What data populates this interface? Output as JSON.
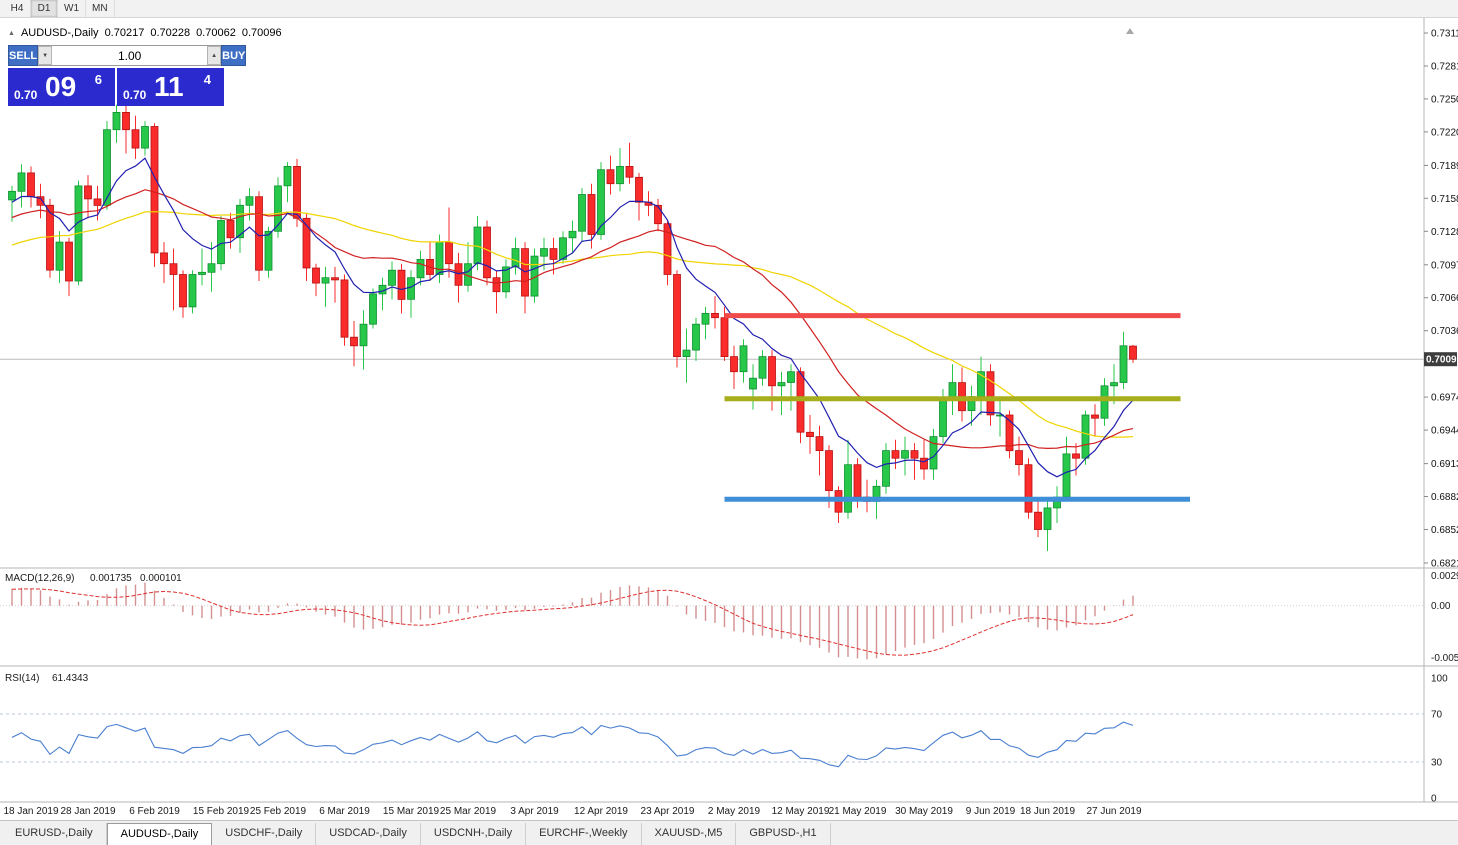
{
  "toolbar": {
    "timeframes": [
      {
        "label": "H4",
        "active": false
      },
      {
        "label": "D1",
        "active": true
      },
      {
        "label": "W1",
        "active": false
      },
      {
        "label": "MN",
        "active": false
      }
    ]
  },
  "icons": {
    "collapse": "▲",
    "volume_up": "▲",
    "volume_down": "▼"
  },
  "info_line": {
    "symbol": "AUDUSD-,Daily",
    "open": "0.70217",
    "high": "0.70228",
    "low": "0.70062",
    "close": "0.70096"
  },
  "one_click": {
    "sell_label": "SELL",
    "buy_label": "BUY",
    "volume": "1.00",
    "sell_price": {
      "small": "0.70",
      "big": "09",
      "sup": "6"
    },
    "buy_price": {
      "small": "0.70",
      "big": "11",
      "sup": "4"
    }
  },
  "chart_data": {
    "type": "candlestick",
    "symbol": "AUDUSD",
    "timeframe": "Daily",
    "bull_color": "#27c74a",
    "bull_border": "#0f8f2f",
    "bear_color": "#f92b2b",
    "bear_border": "#b80f0f",
    "current_price": "0.70096",
    "candles": [
      [
        0.7157,
        0.717,
        0.7137,
        0.7165
      ],
      [
        0.7165,
        0.719,
        0.715,
        0.7182
      ],
      [
        0.7182,
        0.7188,
        0.715,
        0.716
      ],
      [
        0.716,
        0.7172,
        0.714,
        0.7152
      ],
      [
        0.7152,
        0.7158,
        0.7085,
        0.7092
      ],
      [
        0.7092,
        0.7128,
        0.708,
        0.7118
      ],
      [
        0.7118,
        0.7122,
        0.7068,
        0.7082
      ],
      [
        0.7082,
        0.7175,
        0.7078,
        0.717
      ],
      [
        0.717,
        0.718,
        0.714,
        0.7158
      ],
      [
        0.7158,
        0.717,
        0.7138,
        0.7152
      ],
      [
        0.7152,
        0.723,
        0.7148,
        0.7222
      ],
      [
        0.7222,
        0.7245,
        0.721,
        0.7238
      ],
      [
        0.7238,
        0.7248,
        0.72,
        0.7222
      ],
      [
        0.7222,
        0.7235,
        0.7195,
        0.7205
      ],
      [
        0.7205,
        0.723,
        0.7198,
        0.7225
      ],
      [
        0.7225,
        0.7228,
        0.7095,
        0.7108
      ],
      [
        0.7108,
        0.7118,
        0.708,
        0.7098
      ],
      [
        0.7098,
        0.7112,
        0.7055,
        0.7088
      ],
      [
        0.7088,
        0.7092,
        0.7048,
        0.7058
      ],
      [
        0.7058,
        0.7092,
        0.7052,
        0.7088
      ],
      [
        0.7088,
        0.7112,
        0.7078,
        0.709
      ],
      [
        0.709,
        0.7118,
        0.7072,
        0.7098
      ],
      [
        0.7098,
        0.7142,
        0.7092,
        0.7138
      ],
      [
        0.7138,
        0.7145,
        0.7112,
        0.7122
      ],
      [
        0.7122,
        0.7158,
        0.7108,
        0.7152
      ],
      [
        0.7152,
        0.7168,
        0.7138,
        0.716
      ],
      [
        0.716,
        0.7165,
        0.7082,
        0.7092
      ],
      [
        0.7092,
        0.7132,
        0.7085,
        0.7128
      ],
      [
        0.7128,
        0.7178,
        0.7122,
        0.717
      ],
      [
        0.717,
        0.7192,
        0.7155,
        0.7188
      ],
      [
        0.7188,
        0.7195,
        0.7132,
        0.714
      ],
      [
        0.714,
        0.7145,
        0.7082,
        0.7094
      ],
      [
        0.7094,
        0.7098,
        0.7068,
        0.708
      ],
      [
        0.708,
        0.7095,
        0.7058,
        0.7085
      ],
      [
        0.7085,
        0.7095,
        0.7062,
        0.7083
      ],
      [
        0.7083,
        0.7088,
        0.7022,
        0.703
      ],
      [
        0.703,
        0.7045,
        0.7003,
        0.7022
      ],
      [
        0.7022,
        0.7055,
        0.7,
        0.7042
      ],
      [
        0.7042,
        0.7075,
        0.7038,
        0.707
      ],
      [
        0.707,
        0.7085,
        0.7055,
        0.7078
      ],
      [
        0.7078,
        0.71,
        0.7065,
        0.7092
      ],
      [
        0.7092,
        0.7098,
        0.7052,
        0.7065
      ],
      [
        0.7065,
        0.7092,
        0.7048,
        0.7085
      ],
      [
        0.7085,
        0.711,
        0.7078,
        0.7102
      ],
      [
        0.7102,
        0.7118,
        0.7082,
        0.7088
      ],
      [
        0.7088,
        0.7125,
        0.708,
        0.7118
      ],
      [
        0.7118,
        0.715,
        0.7085,
        0.7098
      ],
      [
        0.7098,
        0.7108,
        0.7062,
        0.7078
      ],
      [
        0.7078,
        0.7118,
        0.7072,
        0.7098
      ],
      [
        0.7098,
        0.7142,
        0.7092,
        0.7132
      ],
      [
        0.7132,
        0.7138,
        0.7078,
        0.7085
      ],
      [
        0.7085,
        0.7092,
        0.7052,
        0.7072
      ],
      [
        0.7072,
        0.7102,
        0.7066,
        0.7095
      ],
      [
        0.7095,
        0.7122,
        0.7088,
        0.7112
      ],
      [
        0.7112,
        0.7118,
        0.7052,
        0.7068
      ],
      [
        0.7068,
        0.7112,
        0.7062,
        0.7105
      ],
      [
        0.7105,
        0.7122,
        0.7092,
        0.7112
      ],
      [
        0.7112,
        0.7122,
        0.7088,
        0.7102
      ],
      [
        0.7102,
        0.7128,
        0.7098,
        0.7122
      ],
      [
        0.7122,
        0.7138,
        0.7108,
        0.7128
      ],
      [
        0.7128,
        0.7168,
        0.7118,
        0.7162
      ],
      [
        0.7162,
        0.7172,
        0.7112,
        0.7125
      ],
      [
        0.7125,
        0.7192,
        0.712,
        0.7185
      ],
      [
        0.7185,
        0.7198,
        0.7162,
        0.7172
      ],
      [
        0.7172,
        0.7205,
        0.7165,
        0.7188
      ],
      [
        0.7188,
        0.721,
        0.7172,
        0.7178
      ],
      [
        0.7178,
        0.7182,
        0.7138,
        0.7155
      ],
      [
        0.7155,
        0.7165,
        0.7142,
        0.7152
      ],
      [
        0.7152,
        0.7158,
        0.7128,
        0.7135
      ],
      [
        0.7135,
        0.7138,
        0.7078,
        0.7088
      ],
      [
        0.7088,
        0.7092,
        0.7002,
        0.7012
      ],
      [
        0.7012,
        0.7038,
        0.6988,
        0.7018
      ],
      [
        0.7018,
        0.7048,
        0.7008,
        0.7042
      ],
      [
        0.7042,
        0.7058,
        0.7028,
        0.7052
      ],
      [
        0.7052,
        0.7068,
        0.7038,
        0.7048
      ],
      [
        0.7048,
        0.7058,
        0.7008,
        0.7012
      ],
      [
        0.7012,
        0.7022,
        0.6982,
        0.6998
      ],
      [
        0.6998,
        0.7028,
        0.6988,
        0.7022
      ],
      [
        0.6982,
        0.7005,
        0.6963,
        0.6992
      ],
      [
        0.6992,
        0.7018,
        0.6985,
        0.7012
      ],
      [
        0.7012,
        0.7018,
        0.6962,
        0.6985
      ],
      [
        0.6985,
        0.6998,
        0.6958,
        0.6988
      ],
      [
        0.6988,
        0.7005,
        0.6962,
        0.6998
      ],
      [
        0.6998,
        0.7002,
        0.6932,
        0.6942
      ],
      [
        0.6942,
        0.6958,
        0.6922,
        0.6938
      ],
      [
        0.6938,
        0.6948,
        0.6902,
        0.6925
      ],
      [
        0.6925,
        0.693,
        0.6872,
        0.6888
      ],
      [
        0.6888,
        0.6892,
        0.6858,
        0.6868
      ],
      [
        0.6868,
        0.6935,
        0.6862,
        0.6912
      ],
      [
        0.6912,
        0.6918,
        0.6872,
        0.6882
      ],
      [
        0.6882,
        0.6898,
        0.6868,
        0.6878
      ],
      [
        0.6878,
        0.6898,
        0.6862,
        0.6892
      ],
      [
        0.6892,
        0.6932,
        0.6885,
        0.6925
      ],
      [
        0.6925,
        0.6935,
        0.6908,
        0.6918
      ],
      [
        0.6918,
        0.6938,
        0.6902,
        0.6925
      ],
      [
        0.6925,
        0.6932,
        0.6898,
        0.6918
      ],
      [
        0.6918,
        0.6935,
        0.6898,
        0.6908
      ],
      [
        0.6908,
        0.6945,
        0.6898,
        0.6938
      ],
      [
        0.6938,
        0.6982,
        0.6932,
        0.6972
      ],
      [
        0.6972,
        0.7005,
        0.6958,
        0.6988
      ],
      [
        0.6988,
        0.7002,
        0.6952,
        0.6962
      ],
      [
        0.6962,
        0.6985,
        0.6948,
        0.6975
      ],
      [
        0.6975,
        0.7012,
        0.6958,
        0.6998
      ],
      [
        0.6998,
        0.7005,
        0.6948,
        0.6958
      ],
      [
        0.6958,
        0.6972,
        0.6938,
        0.6958
      ],
      [
        0.6958,
        0.6962,
        0.6918,
        0.6925
      ],
      [
        0.6925,
        0.6938,
        0.6902,
        0.6912
      ],
      [
        0.6912,
        0.6918,
        0.6862,
        0.6868
      ],
      [
        0.6868,
        0.6882,
        0.6845,
        0.6852
      ],
      [
        0.6852,
        0.6878,
        0.6832,
        0.6872
      ],
      [
        0.6872,
        0.6892,
        0.6858,
        0.6882
      ],
      [
        0.6882,
        0.6938,
        0.6878,
        0.6922
      ],
      [
        0.6922,
        0.6932,
        0.6902,
        0.6918
      ],
      [
        0.6918,
        0.6962,
        0.6912,
        0.6958
      ],
      [
        0.6958,
        0.6968,
        0.6938,
        0.6955
      ],
      [
        0.6955,
        0.6992,
        0.6948,
        0.6985
      ],
      [
        0.6985,
        0.7005,
        0.6968,
        0.6988
      ],
      [
        0.6988,
        0.7035,
        0.6982,
        0.7022
      ],
      [
        0.70217,
        0.70228,
        0.70062,
        0.70096
      ]
    ],
    "x_labels": [
      {
        "label": "18 Jan 2019",
        "index": 2
      },
      {
        "label": "28 Jan 2019",
        "index": 8
      },
      {
        "label": "6 Feb 2019",
        "index": 15
      },
      {
        "label": "15 Feb 2019",
        "index": 22
      },
      {
        "label": "25 Feb 2019",
        "index": 28
      },
      {
        "label": "6 Mar 2019",
        "index": 35
      },
      {
        "label": "15 Mar 2019",
        "index": 42
      },
      {
        "label": "25 Mar 2019",
        "index": 48
      },
      {
        "label": "3 Apr 2019",
        "index": 55
      },
      {
        "label": "12 Apr 2019",
        "index": 62
      },
      {
        "label": "23 Apr 2019",
        "index": 69
      },
      {
        "label": "2 May 2019",
        "index": 76
      },
      {
        "label": "12 May 2019",
        "index": 83
      },
      {
        "label": "21 May 2019",
        "index": 89
      },
      {
        "label": "30 May 2019",
        "index": 96
      },
      {
        "label": "9 Jun 2019",
        "index": 103
      },
      {
        "label": "18 Jun 2019",
        "index": 109
      },
      {
        "label": "27 Jun 2019",
        "index": 116
      }
    ],
    "y_axis": {
      "top_price": 0.73115,
      "bottom_price": 0.6821,
      "ticks": [
        "0.73115",
        "0.72810",
        "0.72505",
        "0.72200",
        "0.71890",
        "0.71585",
        "0.71280",
        "0.70970",
        "0.70665",
        "0.70360",
        "0.69745",
        "0.69440",
        "0.69130",
        "0.68825",
        "0.68520",
        "0.68210"
      ]
    },
    "moving_averages": [
      {
        "name": "fast",
        "type": "ema",
        "period": 9,
        "color": "#2020b0"
      },
      {
        "name": "medium",
        "type": "sma",
        "period": 20,
        "color": "#d02020"
      },
      {
        "name": "slow",
        "type": "sma",
        "period": 40,
        "color": "#f0d400"
      }
    ],
    "h_lines": [
      {
        "name": "resistance-line-red",
        "price": 0.705,
        "color": "#f04a4a",
        "width": 5,
        "from_index": 75,
        "to_index": 123
      },
      {
        "name": "support-line-olive",
        "price": 0.6973,
        "color": "#a6ae1c",
        "width": 5,
        "from_index": 75,
        "to_index": 123
      },
      {
        "name": "support-line-blue",
        "price": 0.688,
        "color": "#3e8ed8",
        "width": 5,
        "from_index": 75,
        "to_index": 124
      }
    ],
    "macd": {
      "label": "MACD(12,26,9)",
      "value": "0.001735",
      "signal_value": "0.000101",
      "fast": 12,
      "slow": 26,
      "signal": 9,
      "axis": {
        "top": "0.002984",
        "mid": "0.00",
        "bottom": "-0.00525",
        "top_val": 0.002984,
        "bottom_val": -0.00525
      },
      "bar_color": "#d49090",
      "signal_color": "#e03030"
    },
    "rsi": {
      "label": "RSI(14)",
      "value": "61.4343",
      "period": 14,
      "levels": [
        70,
        30
      ],
      "axis_ticks": [
        "100",
        "70",
        "30",
        "0"
      ],
      "color": "#4a7fd0"
    }
  },
  "tabs": [
    {
      "label": "EURUSD-,Daily",
      "active": false
    },
    {
      "label": "AUDUSD-,Daily",
      "active": true
    },
    {
      "label": "USDCHF-,Daily",
      "active": false
    },
    {
      "label": "USDCAD-,Daily",
      "active": false
    },
    {
      "label": "USDCNH-,Daily",
      "active": false
    },
    {
      "label": "EURCHF-,Weekly",
      "active": false
    },
    {
      "label": "XAUUSD-,M5",
      "active": false
    },
    {
      "label": "GBPUSD-,H1",
      "active": false
    }
  ]
}
